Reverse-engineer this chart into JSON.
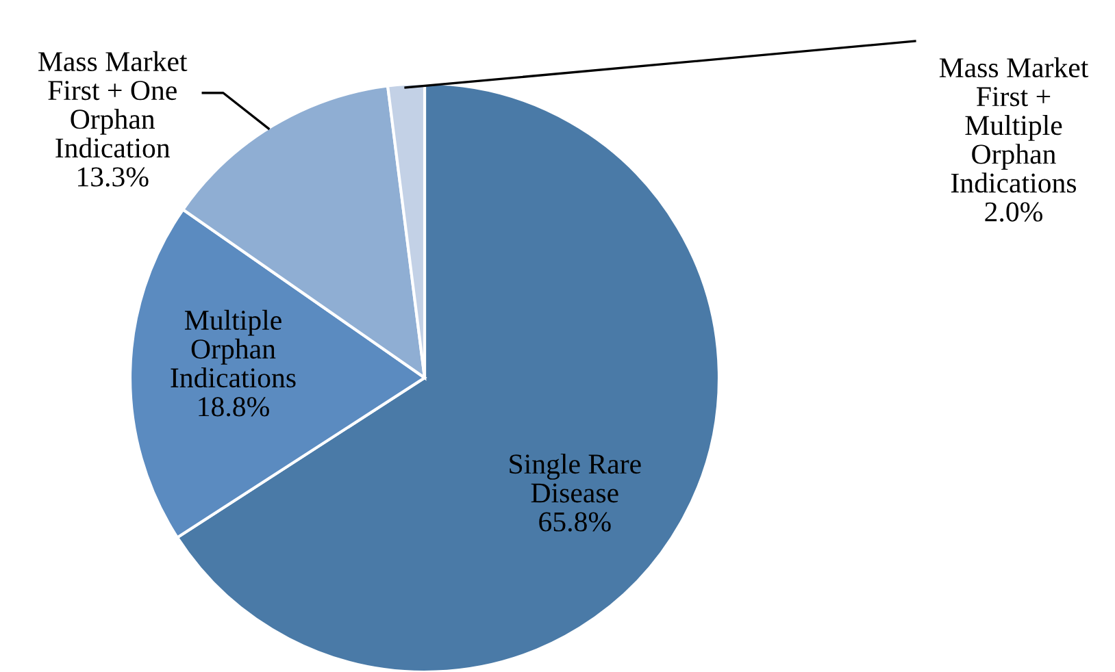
{
  "chart_data": {
    "type": "pie",
    "categories": [
      "Single Rare\nDisease",
      "Multiple\nOrphan\nIndications",
      "Mass Market\nFirst + One\nOrphan\nIndication",
      "Mass Market\nFirst +\nMultiple\nOrphan\nIndications"
    ],
    "values": [
      65.8,
      18.8,
      13.3,
      2.0
    ],
    "value_labels": [
      "65.8%",
      "18.8%",
      "13.3%",
      "2.0%"
    ],
    "colors": [
      "#4a7aa7",
      "#5b8bc0",
      "#8faed3",
      "#c3d1e6"
    ],
    "legend": false
  }
}
